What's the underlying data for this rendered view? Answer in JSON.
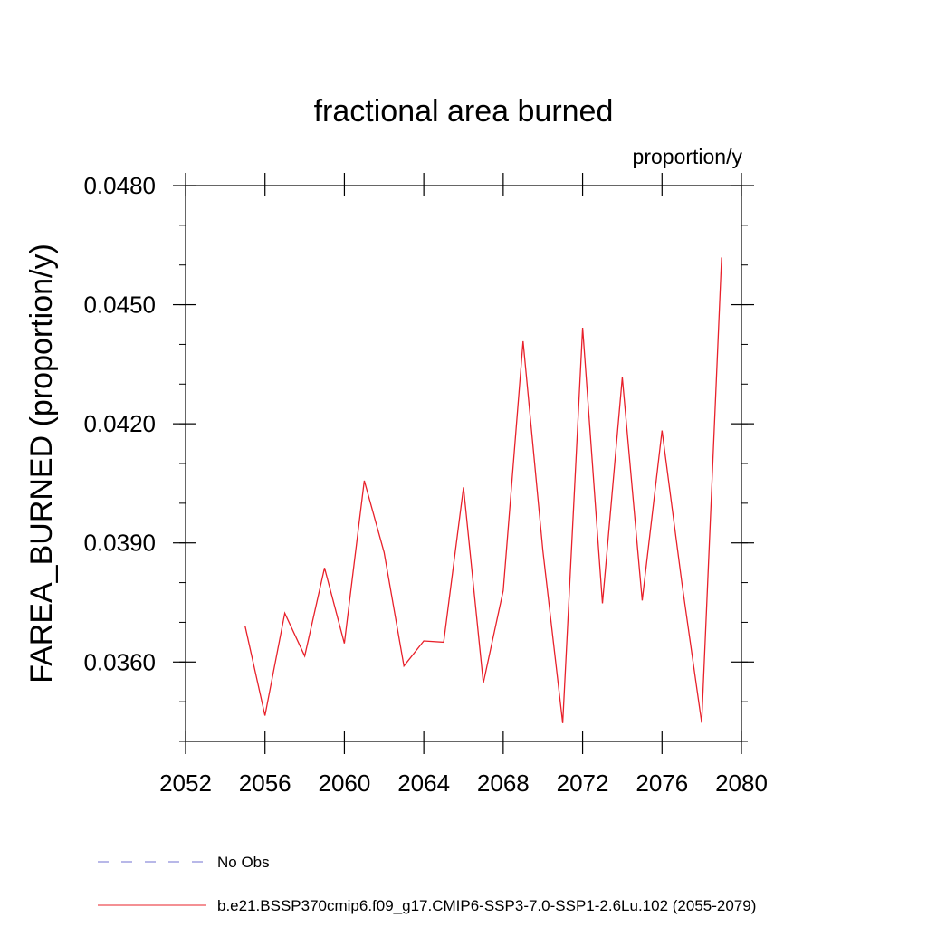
{
  "chart_data": {
    "type": "line",
    "title": "fractional area burned",
    "units": "proportion/y",
    "ylabel": "FAREA_BURNED  (proportion/y)",
    "xlabel": "",
    "xlim": [
      2052,
      2080
    ],
    "ylim": [
      0.034,
      0.048
    ],
    "x_ticks": [
      2052,
      2056,
      2060,
      2064,
      2068,
      2072,
      2076,
      2080
    ],
    "x_tick_labels": [
      "2052",
      "2056",
      "2060",
      "2064",
      "2068",
      "2072",
      "2076",
      "2080"
    ],
    "y_ticks": [
      0.036,
      0.039,
      0.042,
      0.045,
      0.048
    ],
    "y_tick_labels": [
      "0.0360",
      "0.0390",
      "0.0420",
      "0.0450",
      "0.0480"
    ],
    "grid": false,
    "legend_position": "bottom",
    "series": [
      {
        "name": "No Obs",
        "color": "#7070d0",
        "dash": "dashed",
        "x": [],
        "y": []
      },
      {
        "name": "b.e21.BSSP370cmip6.f09_g17.CMIP6-SSP3-7.0-SSP1-2.6Lu.102 (2055-2079)",
        "color": "#e8202a",
        "dash": "solid",
        "x": [
          2055,
          2056,
          2057,
          2058,
          2059,
          2060,
          2061,
          2062,
          2063,
          2064,
          2065,
          2066,
          2067,
          2068,
          2069,
          2070,
          2071,
          2072,
          2073,
          2074,
          2075,
          2076,
          2077,
          2078,
          2079
        ],
        "y": [
          0.0369,
          0.03465,
          0.03723,
          0.03615,
          0.03837,
          0.03647,
          0.04057,
          0.03876,
          0.0359,
          0.03653,
          0.0365,
          0.0404,
          0.03547,
          0.0378,
          0.04408,
          0.0388,
          0.03446,
          0.04442,
          0.03748,
          0.04317,
          0.03755,
          0.04183,
          0.038,
          0.03447,
          0.04619
        ]
      }
    ]
  }
}
